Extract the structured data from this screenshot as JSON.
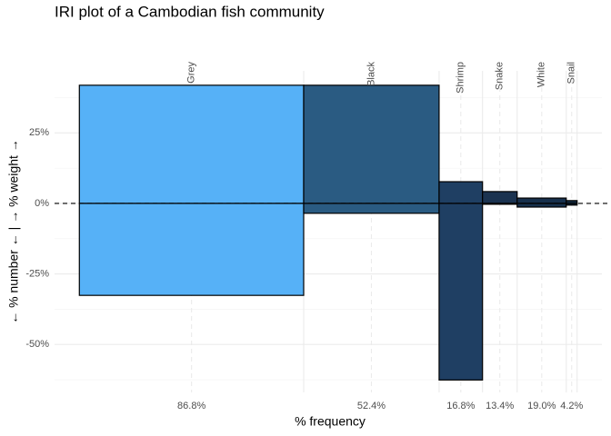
{
  "chart_data": {
    "type": "iri",
    "title": "IRI plot of a Cambodian fish community",
    "x_label": "% frequency",
    "y_label": "← % number ← | → % weight →",
    "categories": [
      "Grey",
      "Black",
      "Shrimp",
      "Snake",
      "White",
      "Snail"
    ],
    "frequency": [
      86.8,
      52.4,
      16.8,
      13.4,
      19.0,
      4.2
    ],
    "frequency_labels": [
      "86.8%",
      "52.4%",
      "16.8%",
      "13.4%",
      "19.0%",
      "4.2%"
    ],
    "weight": [
      41.9,
      41.9,
      7.7,
      4.2,
      1.9,
      1.0
    ],
    "number": [
      -32.6,
      -3.5,
      -62.6,
      -0.3,
      -1.3,
      -0.6
    ],
    "colors": [
      "#56b1f7",
      "#2a5b82",
      "#1f3f63",
      "#1b3350",
      "#17304c",
      "#132b43"
    ],
    "xlim": [
      -9.6,
      202.2
    ],
    "ylim": [
      -67,
      47
    ],
    "yticks": [
      {
        "value": 25,
        "label": "25%"
      },
      {
        "value": 0,
        "label": "0%"
      },
      {
        "value": -25,
        "label": "-25%"
      },
      {
        "value": -50,
        "label": "-50%"
      }
    ],
    "grid": true
  }
}
